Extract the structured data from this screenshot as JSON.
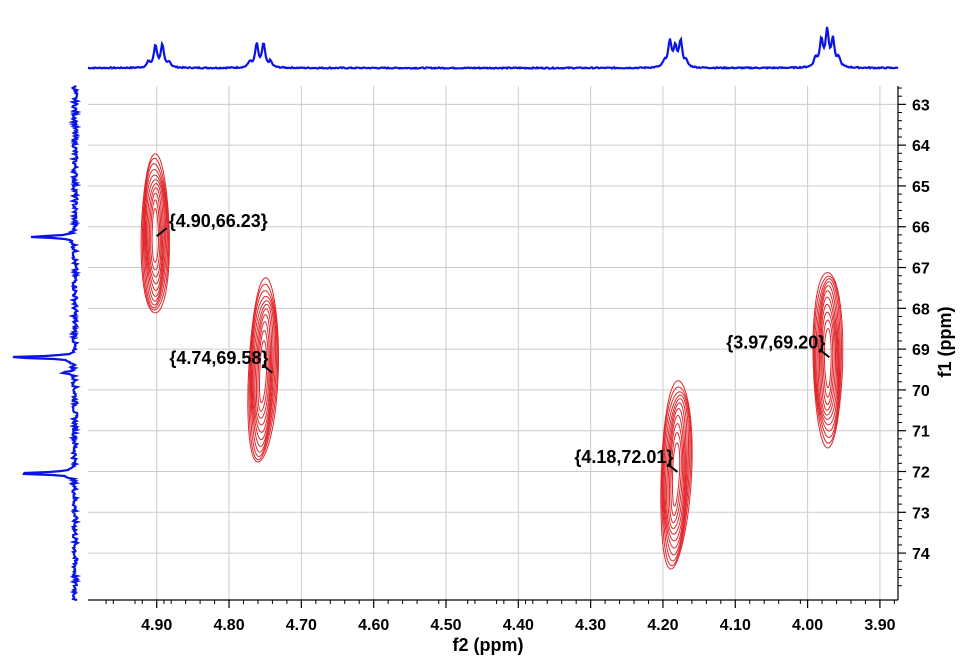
{
  "chart_data": {
    "type": "heatmap",
    "subtype": "2D NMR contour plot (HSQC) with 1D projections",
    "xlabel": "f2 (ppm)",
    "ylabel": "f1 (ppm)",
    "xlim": [
      4.995,
      3.875
    ],
    "ylim": [
      62.55,
      75.15
    ],
    "x_ticks": [
      4.9,
      4.8,
      4.7,
      4.6,
      4.5,
      4.4,
      4.3,
      4.2,
      4.1,
      4.0,
      3.9
    ],
    "x_tick_labels": [
      "4.90",
      "4.80",
      "4.70",
      "4.60",
      "4.50",
      "4.40",
      "4.30",
      "4.20",
      "4.10",
      "4.00",
      "3.90"
    ],
    "y_ticks": [
      63,
      64,
      65,
      66,
      67,
      68,
      69,
      70,
      71,
      72,
      73,
      74
    ],
    "y_tick_labels": [
      "63",
      "64",
      "65",
      "66",
      "67",
      "68",
      "69",
      "70",
      "71",
      "72",
      "73",
      "74"
    ],
    "x_axis_direction": "reversed",
    "y_axis_direction": "increasing downward",
    "y_axis_side": "right",
    "grid": true,
    "contour_color": "#e0262b",
    "projection_color": "#0a14e6",
    "peaks": [
      {
        "label": "{4.90,66.23}",
        "f2": 4.9,
        "f1": 66.23,
        "label_side": "right"
      },
      {
        "label": "{4.74,69.58}",
        "f2": 4.74,
        "f1": 69.58,
        "label_side": "left"
      },
      {
        "label": "{4.18,72.01}",
        "f2": 4.18,
        "f1": 72.01,
        "label_side": "left"
      },
      {
        "label": "{3.97,69.20}",
        "f2": 3.97,
        "f1": 69.2,
        "label_side": "left"
      }
    ],
    "contours": [
      {
        "f2": 4.902,
        "f1": 66.23,
        "half_width_ppm": 0.0195,
        "half_height_ppm": 1.95,
        "shear": 0.0
      },
      {
        "f2": 4.753,
        "f1": 69.55,
        "half_width_ppm": 0.0205,
        "half_height_ppm": 2.25,
        "shear": -0.004
      },
      {
        "f2": 4.182,
        "f1": 72.05,
        "half_width_ppm": 0.021,
        "half_height_ppm": 2.3,
        "shear": -0.004
      },
      {
        "f2": 3.972,
        "f1": 69.2,
        "half_width_ppm": 0.0205,
        "half_height_ppm": 2.15,
        "shear": 0.0
      }
    ],
    "f2_projection_multiplets": [
      {
        "center": 4.897,
        "spacing": 0.0095,
        "intensities": [
          0.25,
          1.0,
          1.0,
          0.25
        ],
        "height": 0.38
      },
      {
        "center": 4.757,
        "spacing": 0.0095,
        "intensities": [
          0.25,
          1.0,
          1.0,
          0.25
        ],
        "height": 0.4
      },
      {
        "center": 4.183,
        "spacing": 0.0075,
        "intensities": [
          0.2,
          0.95,
          0.7,
          0.95,
          0.2
        ],
        "height": 0.48
      },
      {
        "center": 3.973,
        "spacing": 0.008,
        "intensities": [
          0.25,
          0.75,
          1.0,
          0.75,
          0.25
        ],
        "height": 0.62
      }
    ],
    "f1_projection_peaks": [
      {
        "f1": 66.25,
        "intensity": 0.53
      },
      {
        "f1": 69.2,
        "intensity": 0.8
      },
      {
        "f1": 69.58,
        "intensity": 0.14
      },
      {
        "f1": 72.05,
        "intensity": 0.75
      }
    ]
  }
}
